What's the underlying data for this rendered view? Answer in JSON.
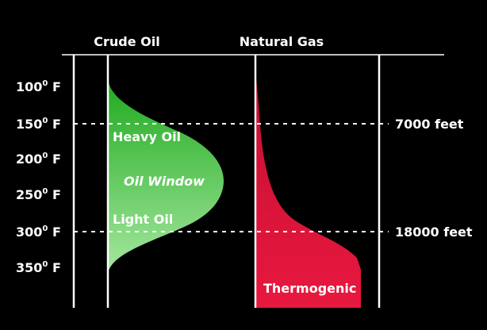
{
  "columns": {
    "crude_oil": "Crude Oil",
    "natural_gas": "Natural Gas"
  },
  "temperatures": [
    {
      "value": "100",
      "sup": "0",
      "unit": " F"
    },
    {
      "value": "150",
      "sup": "0",
      "unit": " F"
    },
    {
      "value": "200",
      "sup": "0",
      "unit": " F"
    },
    {
      "value": "250",
      "sup": "0",
      "unit": " F"
    },
    {
      "value": "300",
      "sup": "0",
      "unit": " F"
    },
    {
      "value": "350",
      "sup": "0",
      "unit": " F"
    }
  ],
  "depths": {
    "upper": "7000 feet",
    "lower": "18000 feet"
  },
  "oil_labels": {
    "heavy": "Heavy Oil",
    "window": "Oil Window",
    "light": "Light Oil"
  },
  "gas_label": "Thermogenic",
  "colors": {
    "background": "#000000",
    "oil_top": "#1faa1f",
    "oil_bottom": "#a6e8a0",
    "gas": "#e8183f",
    "gas_dark": "#c40f32",
    "lines": "#ffffff"
  }
}
